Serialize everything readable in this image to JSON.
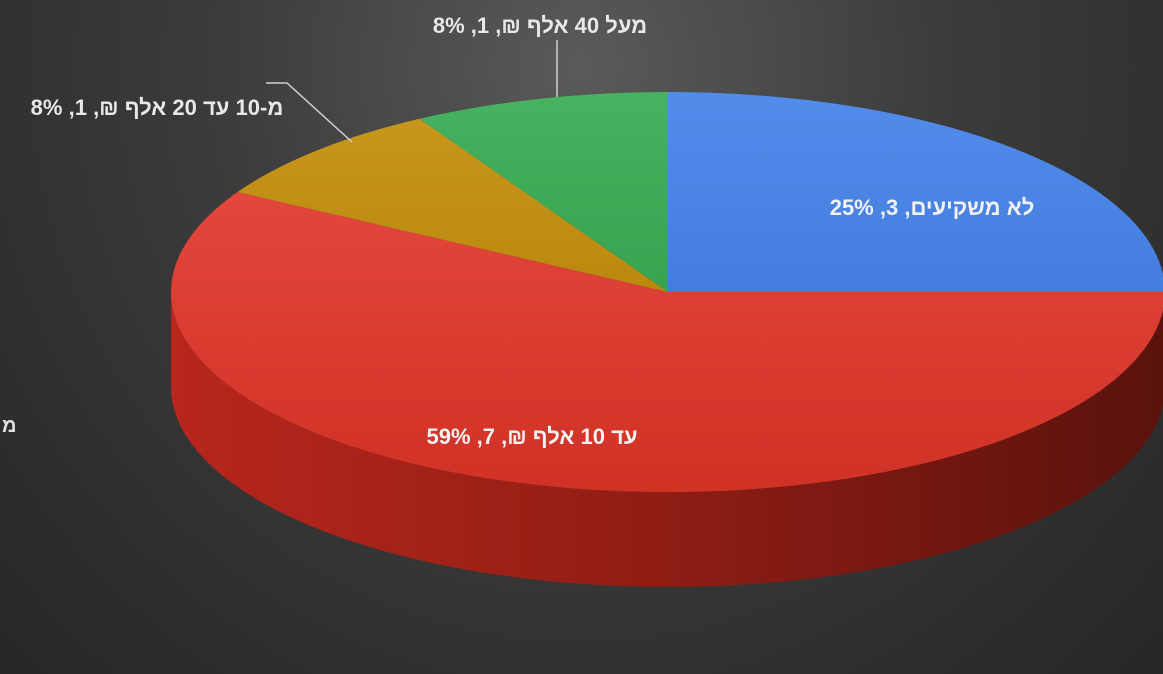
{
  "chart_data": {
    "type": "pie",
    "style": "3d",
    "title": "",
    "slices": [
      {
        "label": "לא משקיעים",
        "count": 3,
        "percent": 25,
        "color": "#3b7de9",
        "display": "לא משקיעים, 3, 25%"
      },
      {
        "label": "עד 10 אלף ₪",
        "count": 7,
        "percent": 59,
        "color": "#e8372a",
        "display": "עד 10 אלף ₪, 7, 59%"
      },
      {
        "label": "מ-10 עד 20 אלף ₪",
        "count": 1,
        "percent": 8,
        "color": "#c28a00",
        "display": "מ-10 עד 20 אלף ₪, 1, 8%"
      },
      {
        "label": "מעל 40 אלף ₪",
        "count": 1,
        "percent": 8,
        "color": "#2ea84a",
        "display": "מעל 40 אלף ₪, 1, 8%"
      }
    ],
    "legend_fragment": "מ"
  }
}
